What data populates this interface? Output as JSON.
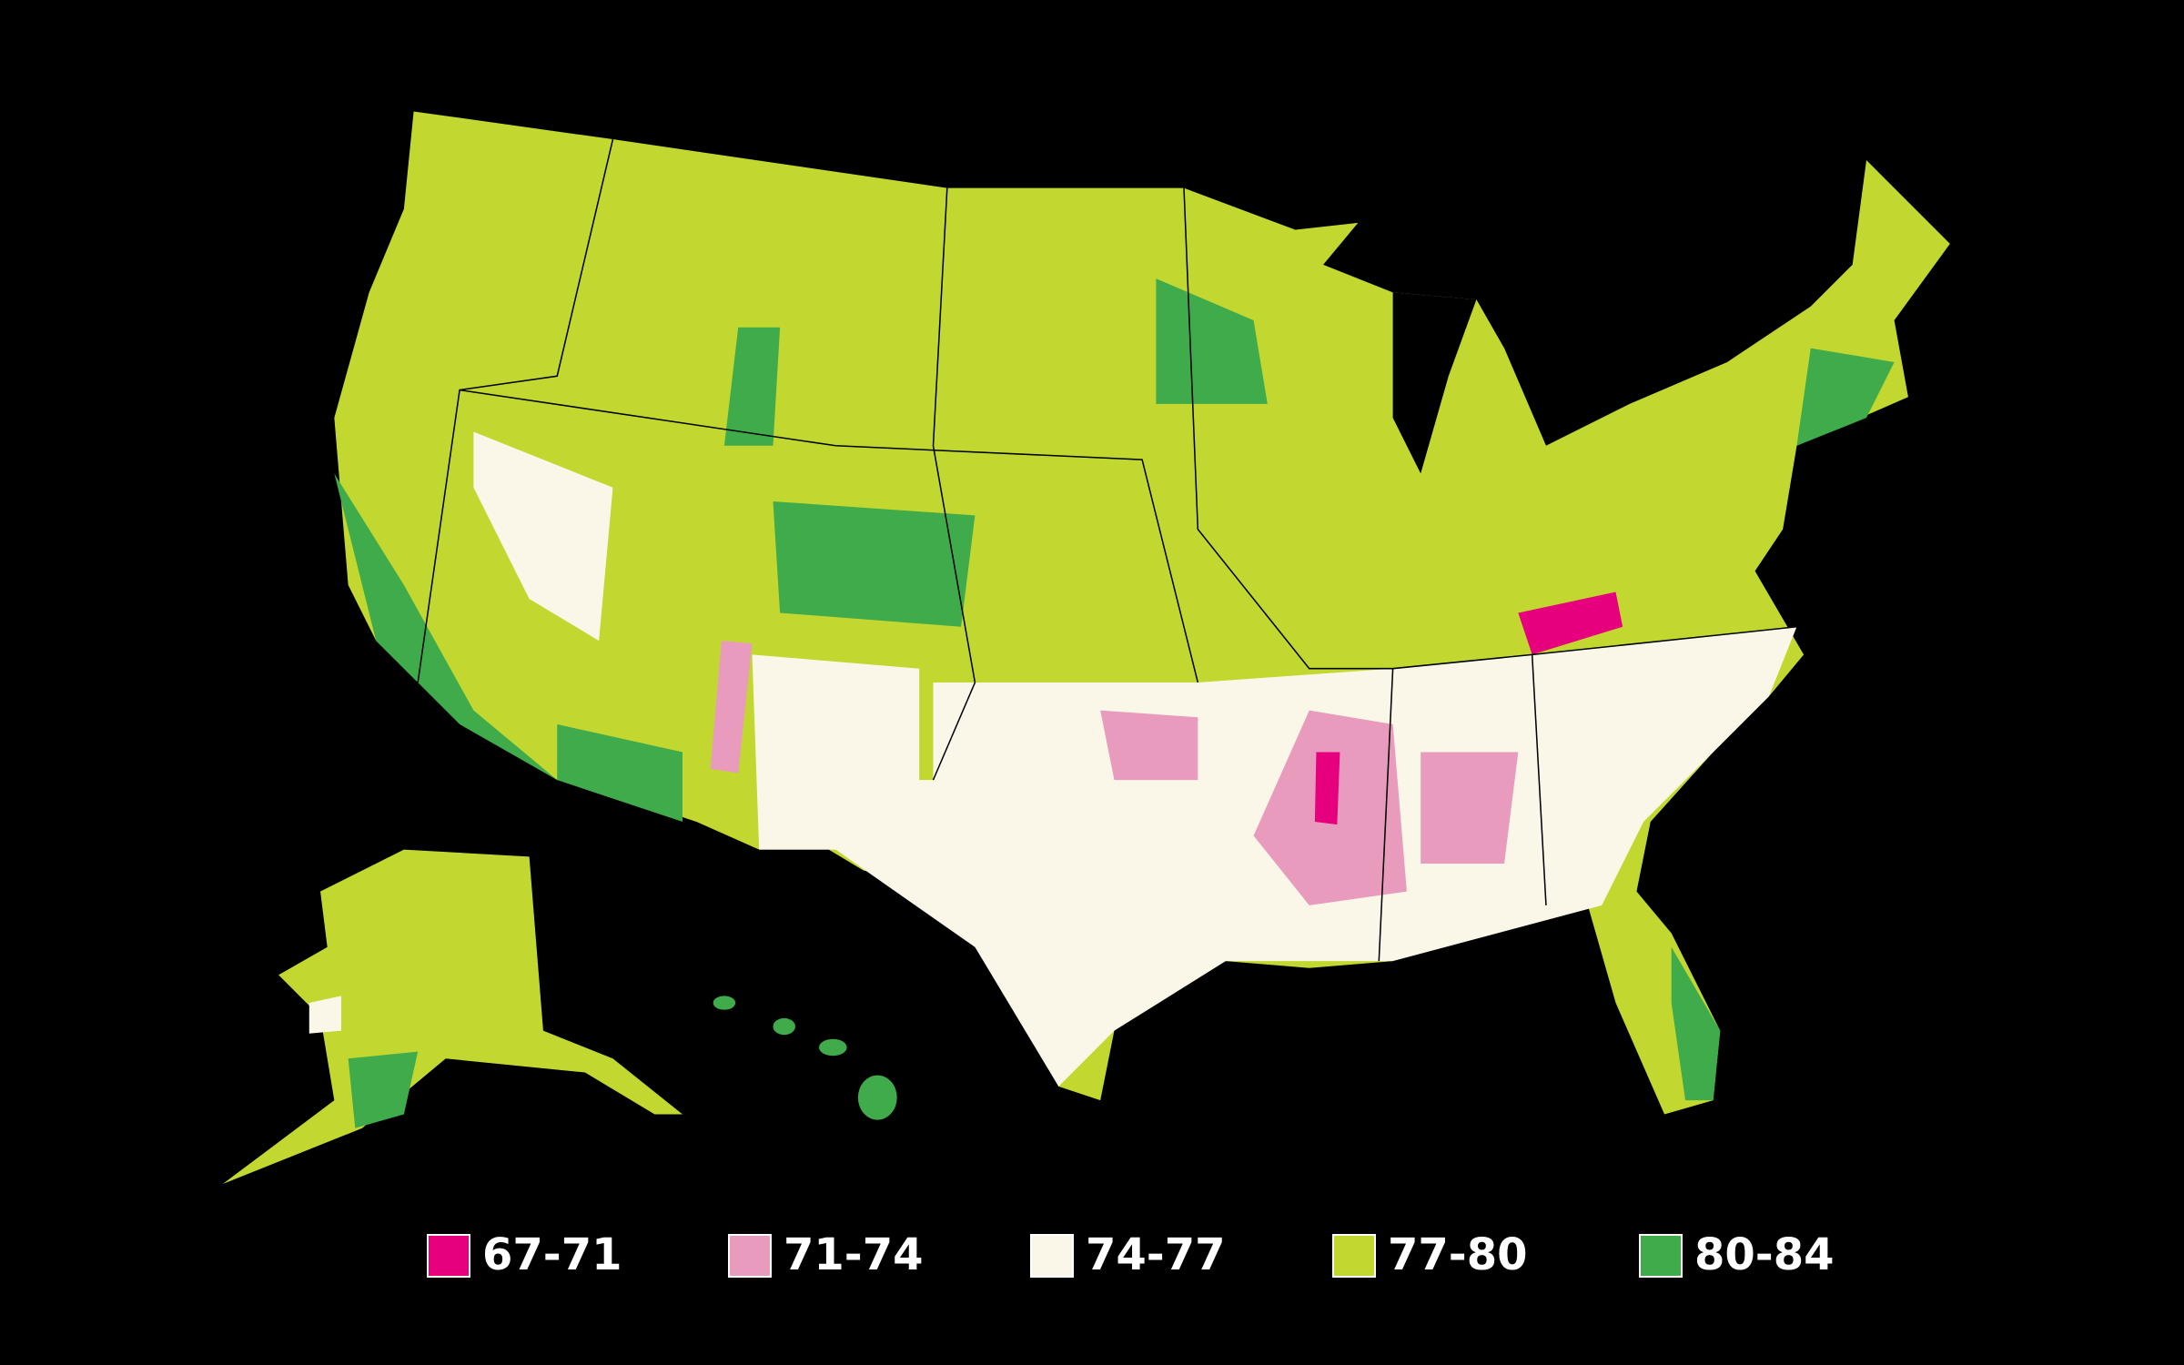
{
  "legend": {
    "items": [
      {
        "label": "67-71",
        "color": "#e6007e"
      },
      {
        "label": "71-74",
        "color": "#e99bbd"
      },
      {
        "label": "74-77",
        "color": "#faf7e8"
      },
      {
        "label": "77-80",
        "color": "#c2d830"
      },
      {
        "label": "80-84",
        "color": "#3fab4a"
      }
    ]
  }
}
